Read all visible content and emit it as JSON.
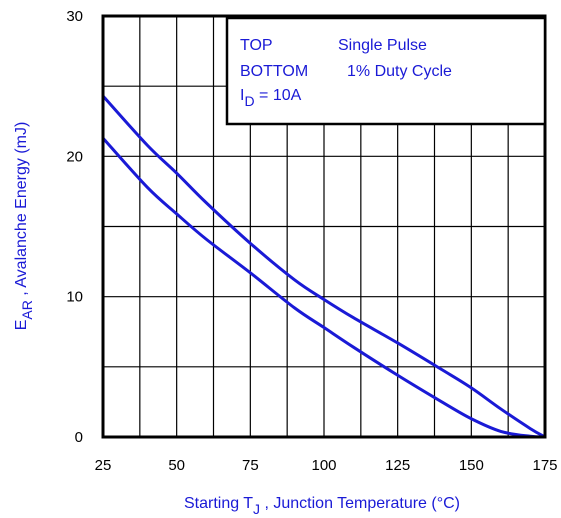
{
  "chart_data": {
    "type": "line",
    "xlabel": {
      "main": "Starting T",
      "sub": "J",
      "rest": " , Junction Temperature (°C)"
    },
    "ylabel": {
      "main": "E",
      "sub": "AR",
      "rest": " , Avalanche Energy (mJ)"
    },
    "xlim": [
      25,
      175
    ],
    "ylim": [
      0,
      30
    ],
    "x_ticks": [
      25,
      50,
      75,
      100,
      125,
      150,
      175
    ],
    "y_ticks": [
      0,
      10,
      20,
      30
    ],
    "grid": true,
    "legend_position": "top-right",
    "legend": {
      "line1_key": "TOP",
      "line1_value": "Single Pulse",
      "line2_key": "BOTTOM",
      "line2_value": "1% Duty Cycle",
      "line3_main": "I",
      "line3_sub": "D",
      "line3_rest": " = 10A"
    },
    "series": [
      {
        "name": "Single Pulse",
        "x": [
          25,
          40,
          50,
          60,
          75,
          90,
          100,
          110,
          125,
          140,
          150,
          160,
          170,
          175
        ],
        "y": [
          24.3,
          20.8,
          18.8,
          16.7,
          13.8,
          11.2,
          9.8,
          8.5,
          6.7,
          4.8,
          3.5,
          2.0,
          0.6,
          0
        ]
      },
      {
        "name": "1% Duty Cycle",
        "x": [
          25,
          40,
          50,
          60,
          75,
          90,
          100,
          110,
          125,
          140,
          150,
          160,
          170,
          175
        ],
        "y": [
          21.3,
          17.8,
          15.9,
          14.1,
          11.7,
          9.2,
          7.8,
          6.4,
          4.4,
          2.5,
          1.3,
          0.4,
          0.05,
          0
        ]
      }
    ],
    "line_color": "#1a1ad6",
    "text_color": "#1a1ad6"
  }
}
